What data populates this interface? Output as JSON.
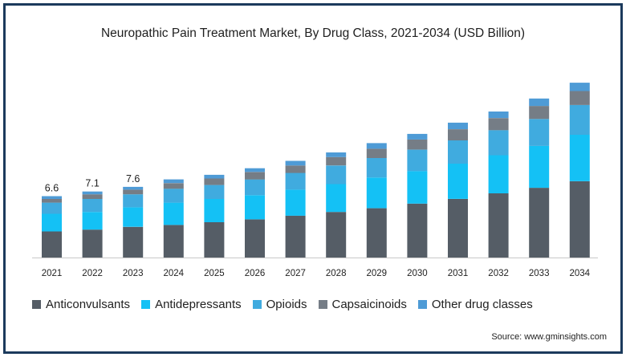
{
  "chart_data": {
    "type": "bar",
    "stacked": true,
    "title": "Neuropathic Pain Treatment Market, By Drug Class, 2021-2034 (USD Billion)",
    "categories": [
      "2021",
      "2022",
      "2023",
      "2024",
      "2025",
      "2026",
      "2027",
      "2028",
      "2029",
      "2030",
      "2031",
      "2032",
      "2033",
      "2034"
    ],
    "series": [
      {
        "name": "Anticonvulsants",
        "color": "#555d66",
        "values": [
          2.8,
          3.0,
          3.3,
          3.5,
          3.8,
          4.1,
          4.5,
          4.9,
          5.3,
          5.8,
          6.3,
          6.9,
          7.5,
          8.2
        ]
      },
      {
        "name": "Antidepressants",
        "color": "#14c1f5",
        "values": [
          1.9,
          1.9,
          2.1,
          2.4,
          2.5,
          2.6,
          2.8,
          3.0,
          3.3,
          3.5,
          3.8,
          4.1,
          4.5,
          5.0
        ]
      },
      {
        "name": "Opioids",
        "color": "#40abdf",
        "values": [
          1.2,
          1.4,
          1.4,
          1.5,
          1.5,
          1.7,
          1.8,
          2.0,
          2.1,
          2.3,
          2.5,
          2.7,
          2.9,
          3.2
        ]
      },
      {
        "name": "Capsaicinoids",
        "color": "#757d86",
        "values": [
          0.4,
          0.5,
          0.5,
          0.6,
          0.7,
          0.8,
          0.8,
          0.9,
          1.0,
          1.1,
          1.2,
          1.3,
          1.4,
          1.5
        ]
      },
      {
        "name": "Other drug classes",
        "color": "#4e9bd6",
        "values": [
          0.3,
          0.3,
          0.3,
          0.4,
          0.4,
          0.4,
          0.5,
          0.5,
          0.6,
          0.6,
          0.7,
          0.7,
          0.8,
          0.9
        ]
      }
    ],
    "data_labels": [
      "6.6",
      "7.1",
      "7.6"
    ],
    "ylim": [
      0,
      19.5
    ],
    "xlabel": "",
    "ylabel": "",
    "grid": false,
    "legend_position": "bottom"
  },
  "source": "Source: www.gminsights.com"
}
